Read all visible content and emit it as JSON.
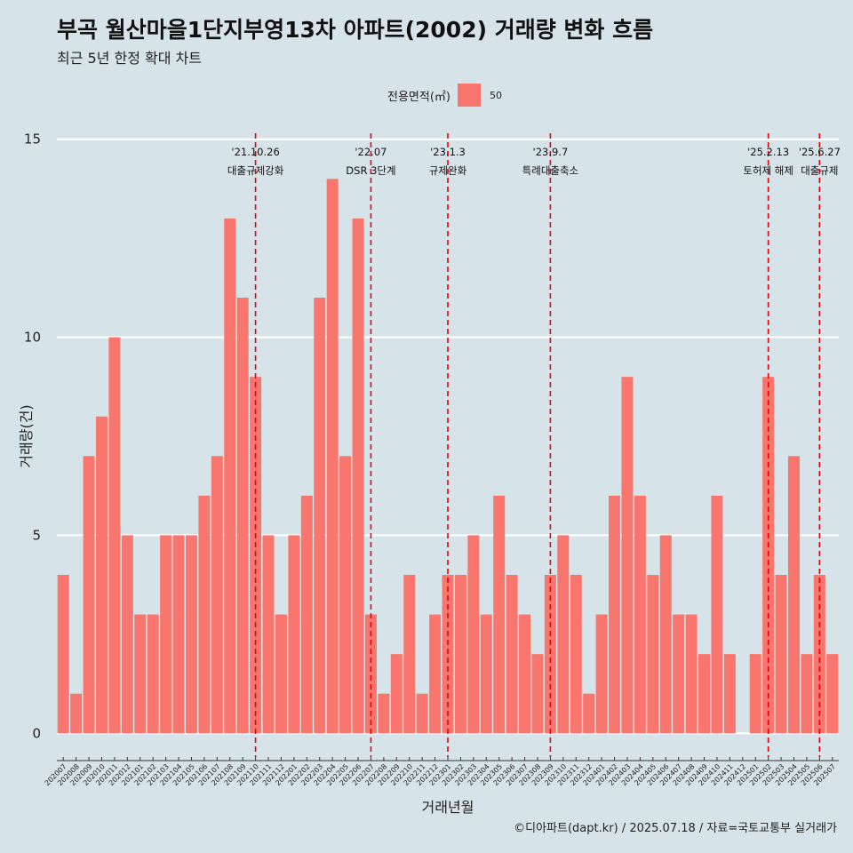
{
  "title": "부곡 월산마을1단지부영13차 아파트(2002) 거래량 변화 흐름",
  "subtitle": "최근 5년 한정 확대 차트",
  "caption": "©디아파트(dapt.kr) / 2025.07.18 / 자료=국토교통부 실거래가",
  "legend": {
    "title": "전용면적(㎡)",
    "items": [
      {
        "label": "50",
        "color": "#f8766d"
      }
    ]
  },
  "chart_data": {
    "type": "bar",
    "xlabel": "거래년월",
    "ylabel": "거래량(건)",
    "ylim": [
      -0.6,
      15.6
    ],
    "yticks": [
      0,
      5,
      10,
      15
    ],
    "grid": true,
    "legend_position": "top",
    "bar_color": "#f8766d",
    "categories": [
      "202007",
      "202008",
      "202009",
      "202010",
      "202011",
      "202012",
      "202101",
      "202102",
      "202103",
      "202104",
      "202105",
      "202106",
      "202107",
      "202108",
      "202109",
      "202110",
      "202111",
      "202112",
      "202201",
      "202202",
      "202203",
      "202204",
      "202205",
      "202206",
      "202207",
      "202208",
      "202209",
      "202210",
      "202211",
      "202212",
      "202301",
      "202302",
      "202303",
      "202304",
      "202305",
      "202306",
      "202307",
      "202308",
      "202309",
      "202310",
      "202311",
      "202312",
      "202401",
      "202402",
      "202403",
      "202404",
      "202405",
      "202406",
      "202407",
      "202408",
      "202409",
      "202410",
      "202411",
      "202412",
      "202501",
      "202502",
      "202503",
      "202504",
      "202505",
      "202506",
      "202507"
    ],
    "series": [
      {
        "name": "50",
        "values": [
          4,
          1,
          7,
          8,
          10,
          5,
          3,
          3,
          5,
          5,
          5,
          6,
          7,
          13,
          11,
          9,
          5,
          3,
          5,
          6,
          11,
          14,
          7,
          13,
          3,
          1,
          2,
          4,
          1,
          3,
          4,
          4,
          5,
          3,
          6,
          4,
          3,
          2,
          4,
          5,
          4,
          1,
          3,
          6,
          9,
          6,
          4,
          5,
          3,
          3,
          2,
          6,
          2,
          0,
          2,
          9,
          4,
          7,
          2,
          4,
          2
        ]
      }
    ],
    "annotations": [
      {
        "x": "202110",
        "date": "'21.10.26",
        "label": "대출규제강화"
      },
      {
        "x": "202207",
        "date": "'22.07",
        "label": "DSR 3단계"
      },
      {
        "x": "202301",
        "date": "'23.1.3",
        "label": "규제완화"
      },
      {
        "x": "202309",
        "date": "'23.9.7",
        "label": "특례대출축소"
      },
      {
        "x": "202502",
        "date": "'25.2.13",
        "label": "토허제 해제"
      },
      {
        "x": "202506",
        "date": "'25.6.27",
        "label": "대출규제"
      }
    ],
    "annotation_color": "#e8000b"
  }
}
